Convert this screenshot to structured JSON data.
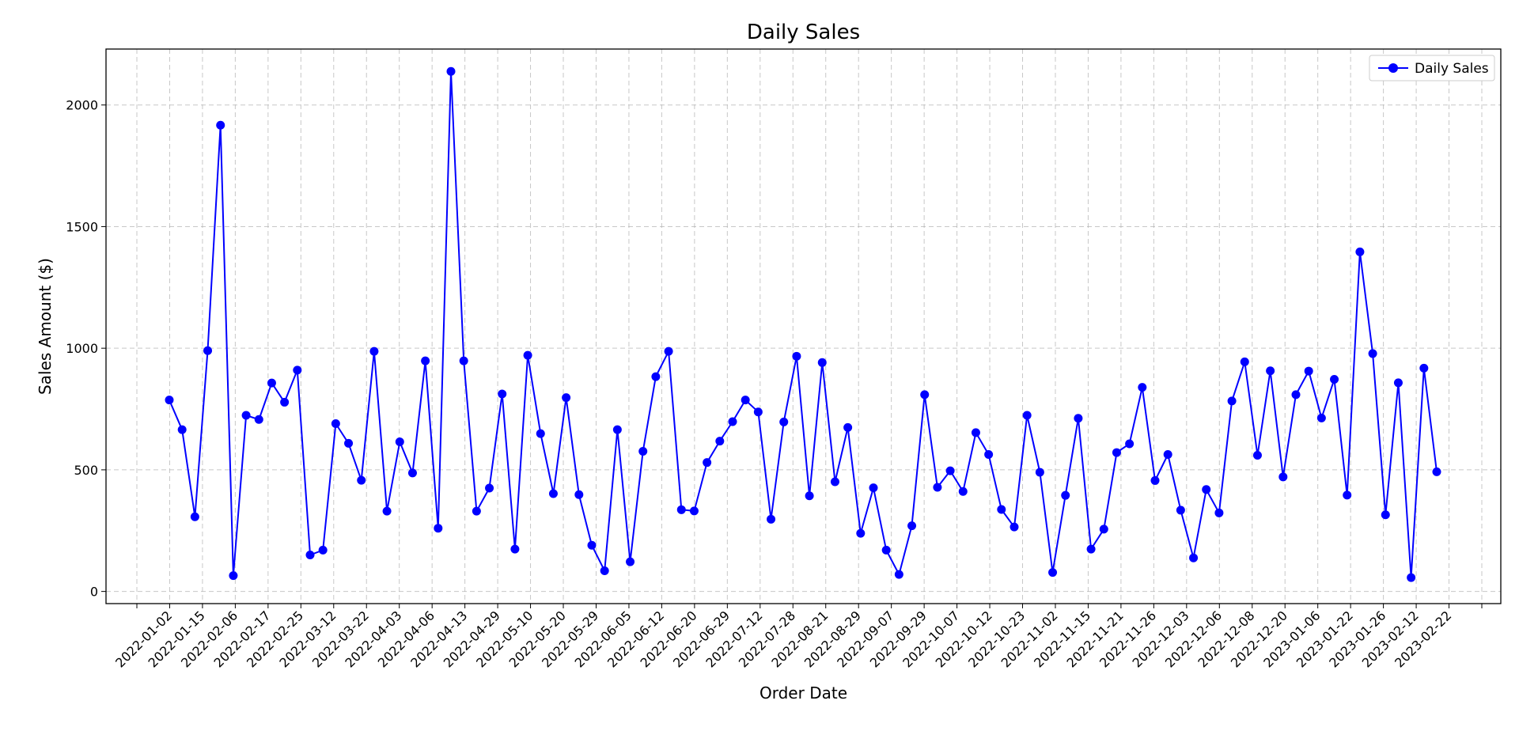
{
  "chart_data": {
    "type": "line",
    "title": "Daily Sales",
    "xlabel": "Order Date",
    "ylabel": "Sales Amount ($)",
    "ylim": [
      -50,
      2230
    ],
    "yticks": [
      0,
      500,
      1000,
      1500,
      2000
    ],
    "grid": true,
    "legend_position": "top-right",
    "series": [
      {
        "name": "Daily Sales",
        "color": "#0000ff",
        "marker": "circle",
        "values": [
          787,
          665,
          307,
          990,
          1917,
          65,
          724,
          707,
          857,
          778,
          910,
          150,
          170,
          690,
          609,
          457,
          987,
          330,
          615,
          487,
          948,
          260,
          2138,
          948,
          330,
          425,
          812,
          174,
          971,
          649,
          402,
          797,
          398,
          190,
          85,
          665,
          122,
          576,
          883,
          987,
          336,
          331,
          530,
          618,
          698,
          787,
          738,
          297,
          697,
          967,
          393,
          941,
          451,
          674,
          239,
          426,
          170,
          70,
          270,
          809,
          428,
          496,
          411,
          653,
          563,
          337,
          265,
          724,
          490,
          78,
          395,
          712,
          174,
          256,
          571,
          607,
          839,
          456,
          563,
          334,
          138,
          419,
          323,
          783,
          944,
          560,
          907,
          471,
          809,
          906,
          713,
          872,
          396,
          1396,
          978,
          315,
          858,
          57,
          918,
          492
        ]
      }
    ],
    "x_ticks": [
      "2022-01-02",
      "2022-01-15",
      "2022-02-06",
      "2022-02-17",
      "2022-02-25",
      "2022-03-12",
      "2022-03-22",
      "2022-04-03",
      "2022-04-06",
      "2022-04-13",
      "2022-04-29",
      "2022-05-10",
      "2022-05-20",
      "2022-05-29",
      "2022-06-05",
      "2022-06-12",
      "2022-06-20",
      "2022-06-29",
      "2022-07-12",
      "2022-07-28",
      "2022-08-21",
      "2022-08-29",
      "2022-09-07",
      "2022-09-29",
      "2022-10-07",
      "2022-10-12",
      "2022-10-23",
      "2022-11-02",
      "2022-11-15",
      "2022-11-21",
      "2022-11-26",
      "2022-12-03",
      "2022-12-06",
      "2022-12-08",
      "2022-12-20",
      "2023-01-06",
      "2023-01-22",
      "2023-01-26",
      "2023-02-12",
      "2023-02-22"
    ]
  }
}
